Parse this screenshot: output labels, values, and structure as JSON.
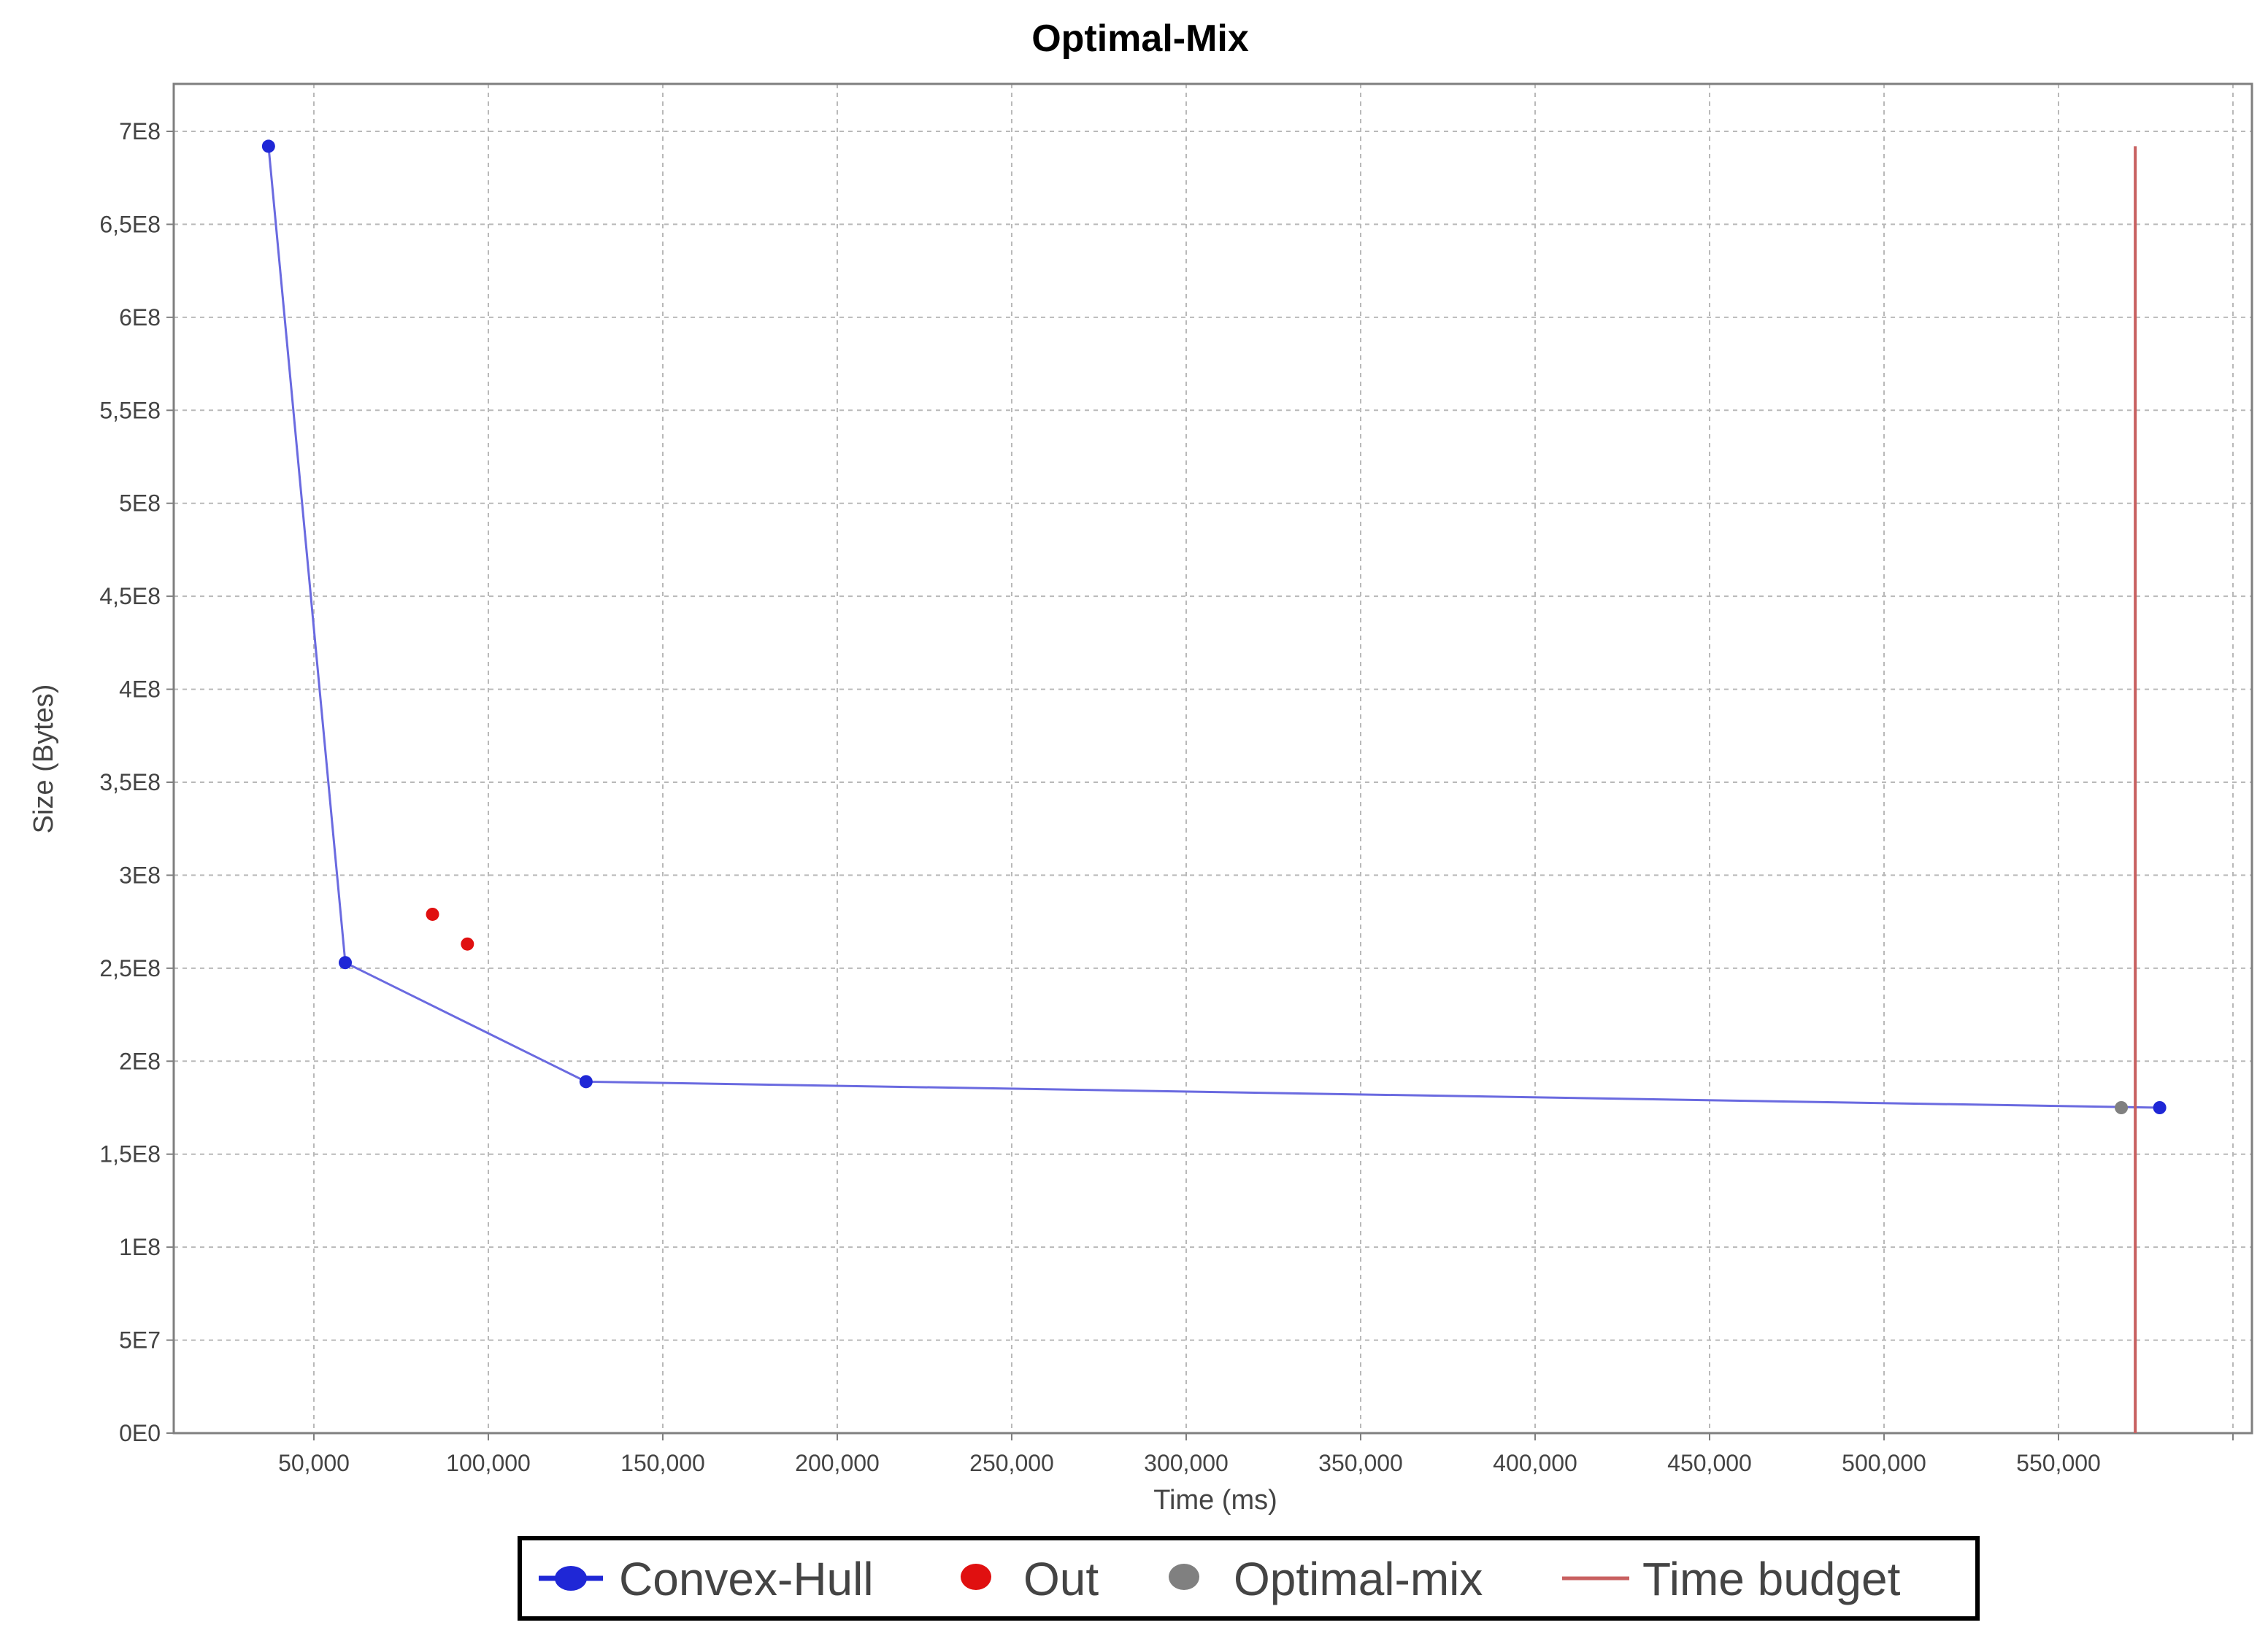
{
  "chart_data": {
    "type": "scatter",
    "title": "Optimal-Mix",
    "xlabel": "Time (ms)",
    "ylabel": "Size (Bytes)",
    "xlim": [
      10000,
      600000
    ],
    "ylim": [
      0,
      720000000
    ],
    "x_ticks": [
      50000,
      100000,
      150000,
      200000,
      250000,
      300000,
      350000,
      400000,
      450000,
      500000,
      550000
    ],
    "x_tick_labels": [
      "50,000",
      "100,000",
      "150,000",
      "200,000",
      "250,000",
      "300,000",
      "350,000",
      "400,000",
      "450,000",
      "500,000",
      "550,000"
    ],
    "y_ticks": [
      0,
      50000000,
      100000000,
      150000000,
      200000000,
      250000000,
      300000000,
      350000000,
      400000000,
      450000000,
      500000000,
      550000000,
      600000000,
      650000000,
      700000000
    ],
    "y_tick_labels": [
      "0E0",
      "5E7",
      "1E8",
      "1,5E8",
      "2E8",
      "2,5E8",
      "3E8",
      "3,5E8",
      "4E8",
      "4,5E8",
      "5E8",
      "5,5E8",
      "6E8",
      "6,5E8",
      "7E8"
    ],
    "grid": true,
    "legend_position": "bottom",
    "series": [
      {
        "name": "Convex-Hull",
        "kind": "line-marker",
        "color": "#1f27d6",
        "line_color": "#6a6ae0",
        "points": [
          {
            "x": 37000,
            "y": 692000000
          },
          {
            "x": 59000,
            "y": 253000000
          },
          {
            "x": 128000,
            "y": 189000000
          },
          {
            "x": 579000,
            "y": 175000000
          }
        ]
      },
      {
        "name": "Out",
        "kind": "marker",
        "color": "#e01010",
        "points": [
          {
            "x": 84000,
            "y": 279000000
          },
          {
            "x": 94000,
            "y": 263000000
          }
        ]
      },
      {
        "name": "Optimal-mix",
        "kind": "marker",
        "color": "#808080",
        "points": [
          {
            "x": 568000,
            "y": 175000000
          }
        ]
      },
      {
        "name": "Time budget",
        "kind": "vline",
        "color": "#c86060",
        "x": 572000,
        "y_range": [
          0,
          692000000
        ]
      }
    ]
  }
}
